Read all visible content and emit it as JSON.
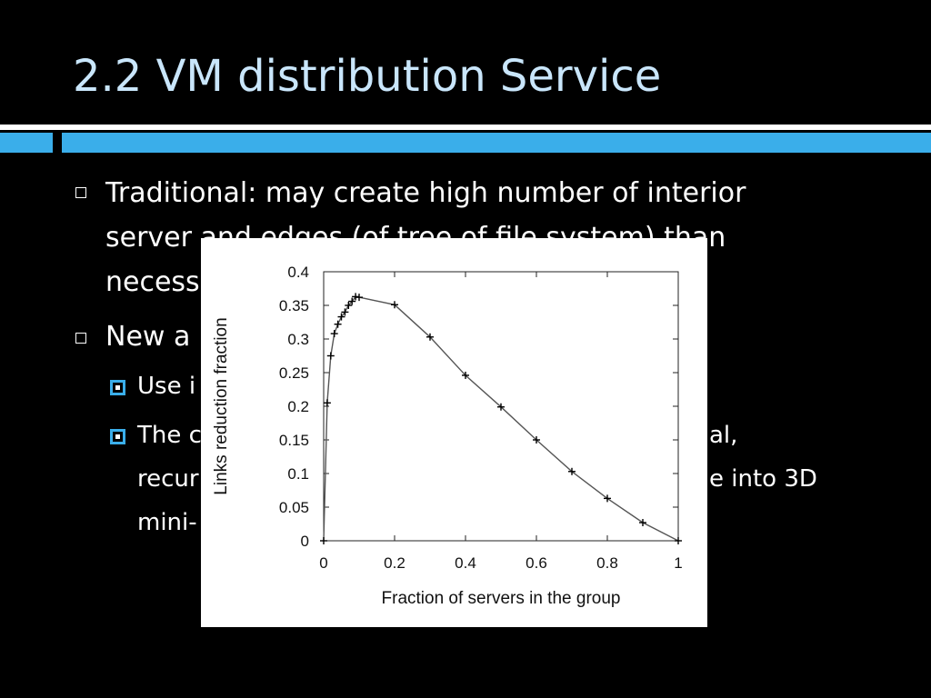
{
  "slide": {
    "title": "2.2 VM distribution Service",
    "bullets": [
      {
        "lines": [
          "Traditional: may create high number of interior",
          "server and edges (of tree of file system) than",
          "necess"
        ]
      },
      {
        "lines": [
          "New a"
        ]
      }
    ],
    "sub_bullets": [
      {
        "lines": [
          "Use i"
        ]
      },
      {
        "lines": [
          "The c",
          "recur",
          "mini-"
        ],
        "right_lines": [
          "al,",
          "e into 3D"
        ]
      }
    ]
  },
  "colors": {
    "background": "#000000",
    "title": "#c9e6fb",
    "accent_bar": "#3aaeea",
    "chart_line": "#555555"
  },
  "chart_data": {
    "type": "line",
    "title": "",
    "xlabel": "Fraction of servers in the group",
    "ylabel": "Links reduction fraction",
    "xlim": [
      0,
      1
    ],
    "ylim": [
      0,
      0.4
    ],
    "xticks": [
      "0",
      "0.2",
      "0.4",
      "0.6",
      "0.8",
      "1"
    ],
    "yticks": [
      "0",
      "0.05",
      "0.1",
      "0.15",
      "0.2",
      "0.25",
      "0.3",
      "0.35",
      "0.4"
    ],
    "grid": false,
    "marker": "plus",
    "series": [
      {
        "x": [
          0,
          0.01,
          0.02,
          0.03,
          0.04,
          0.05,
          0.06,
          0.07,
          0.08,
          0.09,
          0.1,
          0.2,
          0.3,
          0.4,
          0.5,
          0.6,
          0.7,
          0.8,
          0.9,
          1.0
        ],
        "y": [
          0,
          0.205,
          0.275,
          0.308,
          0.322,
          0.333,
          0.34,
          0.35,
          0.356,
          0.363,
          0.362,
          0.351,
          0.303,
          0.246,
          0.199,
          0.15,
          0.103,
          0.063,
          0.027,
          0
        ]
      }
    ]
  }
}
